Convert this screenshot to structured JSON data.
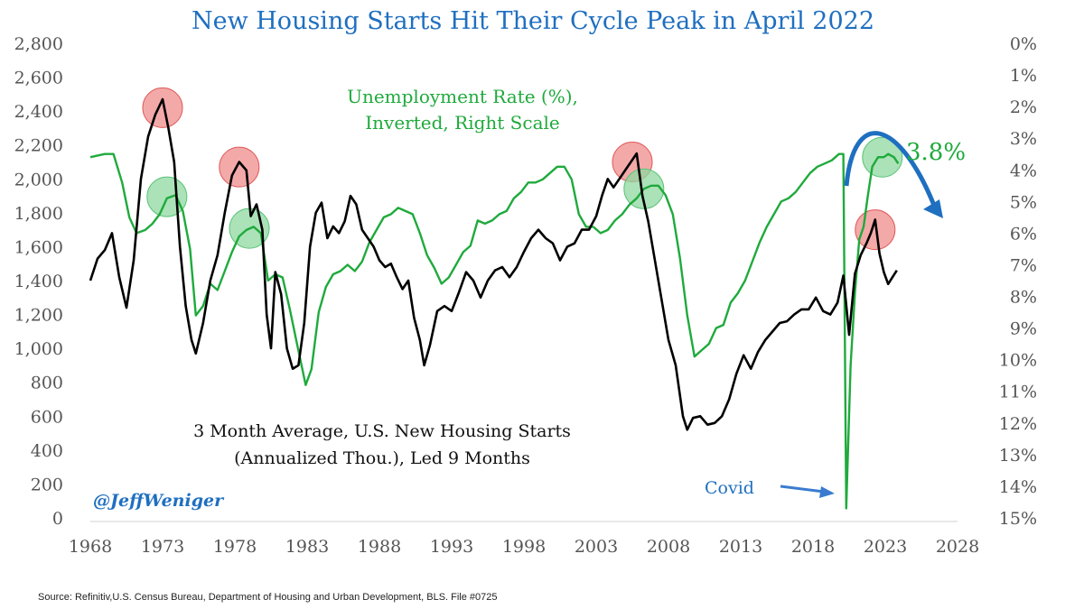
{
  "chart_data": {
    "type": "line",
    "title": "New Housing Starts Hit Their Cycle Peak in April 2022",
    "left_axis": {
      "ticks": [
        0,
        200,
        400,
        600,
        800,
        1000,
        1200,
        1400,
        1600,
        1800,
        2000,
        2200,
        2400,
        2600,
        2800
      ],
      "tick_labels": [
        "0",
        "200",
        "400",
        "600",
        "800",
        "1,000",
        "1,200",
        "1,400",
        "1,600",
        "1,800",
        "2,000",
        "2,200",
        "2,400",
        "2,600",
        "2,800"
      ],
      "range": [
        0,
        2800
      ]
    },
    "right_axis": {
      "ticks": [
        0,
        1,
        2,
        3,
        4,
        5,
        6,
        7,
        8,
        9,
        10,
        11,
        12,
        13,
        14,
        15
      ],
      "tick_labels": [
        "0%",
        "1%",
        "2%",
        "3%",
        "4%",
        "5%",
        "6%",
        "7%",
        "8%",
        "9%",
        "10%",
        "11%",
        "12%",
        "13%",
        "14%",
        "15%"
      ],
      "range": [
        0,
        15
      ],
      "inverted": true
    },
    "x_axis": {
      "ticks": [
        1968,
        1973,
        1978,
        1983,
        1988,
        1993,
        1998,
        2003,
        2008,
        2013,
        2018,
        2023,
        2028
      ],
      "tick_labels": [
        "1968",
        "1973",
        "1978",
        "1983",
        "1988",
        "1993",
        "1998",
        "2003",
        "2008",
        "2013",
        "2018",
        "2023",
        "2028"
      ],
      "range": [
        1968,
        2028
      ]
    },
    "series": [
      {
        "name": "3 Month Average, U.S. New Housing Starts (Annualized Thou.), Led 9 Months",
        "axis": "left",
        "color": "#000000",
        "points": [
          [
            1968.0,
            1400
          ],
          [
            1968.5,
            1530
          ],
          [
            1969.0,
            1580
          ],
          [
            1969.5,
            1680
          ],
          [
            1970.0,
            1420
          ],
          [
            1970.5,
            1240
          ],
          [
            1971.0,
            1520
          ],
          [
            1971.5,
            2000
          ],
          [
            1972.0,
            2250
          ],
          [
            1972.5,
            2380
          ],
          [
            1973.0,
            2470
          ],
          [
            1973.4,
            2300
          ],
          [
            1973.8,
            2100
          ],
          [
            1974.2,
            1600
          ],
          [
            1974.6,
            1250
          ],
          [
            1975.0,
            1050
          ],
          [
            1975.3,
            970
          ],
          [
            1975.8,
            1150
          ],
          [
            1976.3,
            1400
          ],
          [
            1976.8,
            1550
          ],
          [
            1977.3,
            1800
          ],
          [
            1977.8,
            2020
          ],
          [
            1978.3,
            2100
          ],
          [
            1978.8,
            2050
          ],
          [
            1979.1,
            1780
          ],
          [
            1979.5,
            1850
          ],
          [
            1979.9,
            1700
          ],
          [
            1980.2,
            1200
          ],
          [
            1980.5,
            1000
          ],
          [
            1980.8,
            1450
          ],
          [
            1981.2,
            1320
          ],
          [
            1981.6,
            1000
          ],
          [
            1982.0,
            880
          ],
          [
            1982.4,
            900
          ],
          [
            1982.8,
            1150
          ],
          [
            1983.2,
            1600
          ],
          [
            1983.6,
            1800
          ],
          [
            1984.0,
            1860
          ],
          [
            1984.4,
            1650
          ],
          [
            1984.8,
            1720
          ],
          [
            1985.2,
            1680
          ],
          [
            1985.6,
            1750
          ],
          [
            1986.0,
            1900
          ],
          [
            1986.4,
            1850
          ],
          [
            1986.8,
            1700
          ],
          [
            1987.2,
            1650
          ],
          [
            1987.6,
            1600
          ],
          [
            1988.0,
            1520
          ],
          [
            1988.4,
            1480
          ],
          [
            1988.8,
            1500
          ],
          [
            1989.2,
            1420
          ],
          [
            1989.6,
            1350
          ],
          [
            1990.0,
            1400
          ],
          [
            1990.4,
            1180
          ],
          [
            1990.8,
            1050
          ],
          [
            1991.1,
            900
          ],
          [
            1991.5,
            1020
          ],
          [
            1992.0,
            1220
          ],
          [
            1992.5,
            1250
          ],
          [
            1993.0,
            1220
          ],
          [
            1993.5,
            1330
          ],
          [
            1994.0,
            1450
          ],
          [
            1994.5,
            1400
          ],
          [
            1995.0,
            1300
          ],
          [
            1995.5,
            1400
          ],
          [
            1996.0,
            1460
          ],
          [
            1996.5,
            1480
          ],
          [
            1997.0,
            1420
          ],
          [
            1997.5,
            1480
          ],
          [
            1998.0,
            1570
          ],
          [
            1998.5,
            1650
          ],
          [
            1999.0,
            1700
          ],
          [
            1999.5,
            1650
          ],
          [
            2000.0,
            1620
          ],
          [
            2000.5,
            1520
          ],
          [
            2001.0,
            1600
          ],
          [
            2001.5,
            1620
          ],
          [
            2002.0,
            1700
          ],
          [
            2002.5,
            1700
          ],
          [
            2003.0,
            1780
          ],
          [
            2003.4,
            1900
          ],
          [
            2003.8,
            2000
          ],
          [
            2004.2,
            1950
          ],
          [
            2004.6,
            2000
          ],
          [
            2005.0,
            2050
          ],
          [
            2005.4,
            2100
          ],
          [
            2005.8,
            2150
          ],
          [
            2006.2,
            1900
          ],
          [
            2006.6,
            1750
          ],
          [
            2007.0,
            1550
          ],
          [
            2007.5,
            1300
          ],
          [
            2008.0,
            1050
          ],
          [
            2008.5,
            900
          ],
          [
            2009.0,
            600
          ],
          [
            2009.3,
            520
          ],
          [
            2009.7,
            590
          ],
          [
            2010.2,
            600
          ],
          [
            2010.7,
            550
          ],
          [
            2011.2,
            560
          ],
          [
            2011.7,
            600
          ],
          [
            2012.2,
            700
          ],
          [
            2012.7,
            850
          ],
          [
            2013.2,
            960
          ],
          [
            2013.7,
            880
          ],
          [
            2014.2,
            980
          ],
          [
            2014.7,
            1050
          ],
          [
            2015.2,
            1100
          ],
          [
            2015.7,
            1150
          ],
          [
            2016.2,
            1160
          ],
          [
            2016.7,
            1200
          ],
          [
            2017.2,
            1230
          ],
          [
            2017.7,
            1230
          ],
          [
            2018.2,
            1300
          ],
          [
            2018.7,
            1220
          ],
          [
            2019.2,
            1200
          ],
          [
            2019.7,
            1270
          ],
          [
            2020.1,
            1430
          ],
          [
            2020.5,
            1080
          ],
          [
            2020.9,
            1440
          ],
          [
            2021.3,
            1550
          ],
          [
            2021.7,
            1620
          ],
          [
            2022.0,
            1680
          ],
          [
            2022.3,
            1760
          ],
          [
            2022.6,
            1560
          ],
          [
            2022.9,
            1450
          ],
          [
            2023.2,
            1380
          ],
          [
            2023.5,
            1420
          ],
          [
            2023.8,
            1460
          ]
        ]
      },
      {
        "name": "Unemployment Rate (%), Inverted, Right Scale",
        "axis": "right",
        "color": "#1faa3c",
        "points": [
          [
            1968.0,
            3.6
          ],
          [
            1969.0,
            3.5
          ],
          [
            1969.6,
            3.5
          ],
          [
            1970.2,
            4.4
          ],
          [
            1970.7,
            5.5
          ],
          [
            1971.2,
            6.0
          ],
          [
            1971.8,
            5.9
          ],
          [
            1972.3,
            5.7
          ],
          [
            1972.8,
            5.4
          ],
          [
            1973.3,
            4.9
          ],
          [
            1973.9,
            4.8
          ],
          [
            1974.4,
            5.3
          ],
          [
            1974.9,
            6.5
          ],
          [
            1975.3,
            8.6
          ],
          [
            1975.8,
            8.3
          ],
          [
            1976.3,
            7.6
          ],
          [
            1976.8,
            7.8
          ],
          [
            1977.3,
            7.2
          ],
          [
            1977.8,
            6.6
          ],
          [
            1978.3,
            6.1
          ],
          [
            1978.8,
            5.9
          ],
          [
            1979.3,
            5.8
          ],
          [
            1979.8,
            6.0
          ],
          [
            1980.3,
            7.5
          ],
          [
            1980.8,
            7.3
          ],
          [
            1981.3,
            7.4
          ],
          [
            1981.8,
            8.4
          ],
          [
            1982.3,
            9.5
          ],
          [
            1982.9,
            10.8
          ],
          [
            1983.3,
            10.3
          ],
          [
            1983.8,
            8.5
          ],
          [
            1984.3,
            7.7
          ],
          [
            1984.8,
            7.3
          ],
          [
            1985.3,
            7.2
          ],
          [
            1985.8,
            7.0
          ],
          [
            1986.3,
            7.2
          ],
          [
            1986.8,
            6.9
          ],
          [
            1987.3,
            6.3
          ],
          [
            1987.8,
            5.9
          ],
          [
            1988.3,
            5.5
          ],
          [
            1988.8,
            5.4
          ],
          [
            1989.3,
            5.2
          ],
          [
            1989.8,
            5.3
          ],
          [
            1990.3,
            5.4
          ],
          [
            1990.8,
            6.0
          ],
          [
            1991.3,
            6.7
          ],
          [
            1991.8,
            7.1
          ],
          [
            1992.3,
            7.6
          ],
          [
            1992.8,
            7.4
          ],
          [
            1993.3,
            7.0
          ],
          [
            1993.8,
            6.6
          ],
          [
            1994.3,
            6.4
          ],
          [
            1994.8,
            5.6
          ],
          [
            1995.3,
            5.7
          ],
          [
            1995.8,
            5.6
          ],
          [
            1996.3,
            5.4
          ],
          [
            1996.8,
            5.3
          ],
          [
            1997.3,
            4.9
          ],
          [
            1997.8,
            4.7
          ],
          [
            1998.3,
            4.4
          ],
          [
            1998.8,
            4.4
          ],
          [
            1999.3,
            4.3
          ],
          [
            1999.8,
            4.1
          ],
          [
            2000.3,
            3.9
          ],
          [
            2000.8,
            3.9
          ],
          [
            2001.3,
            4.3
          ],
          [
            2001.8,
            5.4
          ],
          [
            2002.3,
            5.8
          ],
          [
            2002.8,
            5.8
          ],
          [
            2003.3,
            6.0
          ],
          [
            2003.8,
            5.9
          ],
          [
            2004.3,
            5.6
          ],
          [
            2004.8,
            5.4
          ],
          [
            2005.3,
            5.1
          ],
          [
            2005.8,
            4.9
          ],
          [
            2006.3,
            4.6
          ],
          [
            2006.8,
            4.5
          ],
          [
            2007.3,
            4.5
          ],
          [
            2007.8,
            4.8
          ],
          [
            2008.3,
            5.4
          ],
          [
            2008.8,
            6.8
          ],
          [
            2009.3,
            8.6
          ],
          [
            2009.8,
            9.9
          ],
          [
            2010.3,
            9.7
          ],
          [
            2010.8,
            9.5
          ],
          [
            2011.3,
            9.0
          ],
          [
            2011.8,
            8.9
          ],
          [
            2012.3,
            8.2
          ],
          [
            2012.8,
            7.9
          ],
          [
            2013.3,
            7.5
          ],
          [
            2013.8,
            6.9
          ],
          [
            2014.3,
            6.3
          ],
          [
            2014.8,
            5.8
          ],
          [
            2015.3,
            5.4
          ],
          [
            2015.8,
            5.0
          ],
          [
            2016.3,
            4.9
          ],
          [
            2016.8,
            4.7
          ],
          [
            2017.3,
            4.4
          ],
          [
            2017.8,
            4.1
          ],
          [
            2018.3,
            3.9
          ],
          [
            2018.8,
            3.8
          ],
          [
            2019.3,
            3.7
          ],
          [
            2019.8,
            3.5
          ],
          [
            2020.1,
            3.5
          ],
          [
            2020.3,
            14.7
          ],
          [
            2020.6,
            10.2
          ],
          [
            2020.9,
            7.9
          ],
          [
            2021.2,
            6.2
          ],
          [
            2021.5,
            5.8
          ],
          [
            2021.8,
            4.8
          ],
          [
            2022.1,
            3.9
          ],
          [
            2022.5,
            3.6
          ],
          [
            2022.9,
            3.6
          ],
          [
            2023.2,
            3.5
          ],
          [
            2023.6,
            3.6
          ],
          [
            2023.9,
            3.8
          ]
        ]
      }
    ],
    "annotations": {
      "green_label": [
        "Unemployment Rate (%),",
        "Inverted, Right Scale"
      ],
      "black_label": [
        "3 Month Average, U.S. New Housing Starts",
        "(Annualized Thou.), Led 9 Months"
      ],
      "covid_label": "Covid",
      "value_label": "3.8%",
      "author": "@JeffWeniger",
      "source": "Source: Refinitiv,U.S. Census Bureau, Department of Housing and Urban Development, BLS. File #0725"
    },
    "highlight_markers": [
      {
        "name": "housing-peak-1973",
        "axis": "left",
        "x": 1973.0,
        "y": 2420,
        "color": "red"
      },
      {
        "name": "housing-peak-1978",
        "axis": "left",
        "x": 1978.3,
        "y": 2070,
        "color": "red"
      },
      {
        "name": "housing-peak-2005",
        "axis": "left",
        "x": 2005.5,
        "y": 2100,
        "color": "red"
      },
      {
        "name": "housing-peak-2022",
        "axis": "left",
        "x": 2022.3,
        "y": 1700,
        "color": "red"
      },
      {
        "name": "unemployment-low-1973",
        "axis": "right",
        "x": 1973.3,
        "y": 4.85,
        "color": "green"
      },
      {
        "name": "unemployment-low-1979",
        "axis": "right",
        "x": 1979.0,
        "y": 5.85,
        "color": "green"
      },
      {
        "name": "unemployment-low-2006",
        "axis": "right",
        "x": 2006.3,
        "y": 4.6,
        "color": "green"
      },
      {
        "name": "unemployment-low-2022",
        "axis": "right",
        "x": 2022.8,
        "y": 3.6,
        "color": "green"
      }
    ],
    "colors": {
      "title": "#1f6fc0",
      "housing": "#000000",
      "unemployment": "#1faa3c",
      "arrow": "#1f6fc0",
      "marker_red": "#f08c8c",
      "marker_green": "#8fd8a0"
    }
  }
}
